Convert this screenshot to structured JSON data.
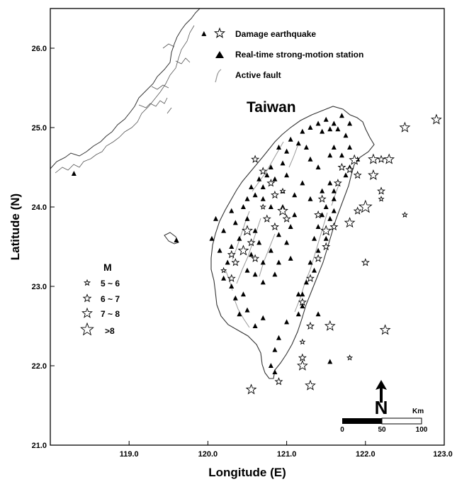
{
  "map": {
    "type": "map",
    "region_label": "Taiwan",
    "x_axis_title": "Longitude (E)",
    "y_axis_title": "Latitude (N)",
    "lon_range": [
      118.0,
      123.0
    ],
    "lat_range": [
      21.0,
      26.5
    ],
    "lon_ticks": [
      119.0,
      120.0,
      121.0,
      122.0,
      123.0
    ],
    "lat_ticks": [
      21.0,
      22.0,
      23.0,
      24.0,
      25.0,
      26.0
    ],
    "lon_tick_labels": [
      "119.0",
      "120.0",
      "121.0",
      "122.0",
      "123.0"
    ],
    "lat_tick_labels": [
      "21.0",
      "22.0",
      "23.0",
      "24.0",
      "25.0",
      "26.0"
    ]
  },
  "legend": {
    "items": [
      {
        "label": "Damage earthquake",
        "icon": "star-icon"
      },
      {
        "label": "Real-time strong-motion station",
        "icon": "triangle-icon"
      },
      {
        "label": "Active fault",
        "icon": "fault-line-icon"
      }
    ]
  },
  "magnitude_legend": {
    "title": "M",
    "classes": [
      "5 ~ 6",
      "6 ~ 7",
      "7 ~ 8",
      ">8"
    ]
  },
  "scale_bar": {
    "unit": "Km",
    "labels": [
      "0",
      "50",
      "100"
    ]
  },
  "north_arrow": {
    "label": "N"
  },
  "earthquakes": [
    {
      "lon": 121.86,
      "lat": 24.59,
      "m": 7
    },
    {
      "lon": 122.1,
      "lat": 24.6,
      "m": 7
    },
    {
      "lon": 122.3,
      "lat": 24.6,
      "m": 7
    },
    {
      "lon": 122.2,
      "lat": 24.6,
      "m": 6
    },
    {
      "lon": 122.5,
      "lat": 25.0,
      "m": 7
    },
    {
      "lon": 122.9,
      "lat": 25.1,
      "m": 7
    },
    {
      "lon": 121.8,
      "lat": 24.47,
      "m": 6
    },
    {
      "lon": 121.7,
      "lat": 24.5,
      "m": 6
    },
    {
      "lon": 121.9,
      "lat": 24.4,
      "m": 6
    },
    {
      "lon": 122.1,
      "lat": 24.4,
      "m": 7
    },
    {
      "lon": 122.2,
      "lat": 24.2,
      "m": 6
    },
    {
      "lon": 122.2,
      "lat": 24.1,
      "m": 5
    },
    {
      "lon": 122.5,
      "lat": 23.9,
      "m": 5
    },
    {
      "lon": 122.0,
      "lat": 24.0,
      "m": 8
    },
    {
      "lon": 121.8,
      "lat": 23.8,
      "m": 7
    },
    {
      "lon": 121.9,
      "lat": 23.95,
      "m": 6
    },
    {
      "lon": 121.6,
      "lat": 23.75,
      "m": 6
    },
    {
      "lon": 121.5,
      "lat": 23.7,
      "m": 7
    },
    {
      "lon": 121.4,
      "lat": 23.9,
      "m": 6
    },
    {
      "lon": 121.45,
      "lat": 24.1,
      "m": 6
    },
    {
      "lon": 121.5,
      "lat": 23.5,
      "m": 6
    },
    {
      "lon": 121.4,
      "lat": 23.35,
      "m": 6
    },
    {
      "lon": 121.3,
      "lat": 23.1,
      "m": 6
    },
    {
      "lon": 122.0,
      "lat": 23.3,
      "m": 6
    },
    {
      "lon": 121.2,
      "lat": 22.8,
      "m": 6
    },
    {
      "lon": 121.55,
      "lat": 22.5,
      "m": 7
    },
    {
      "lon": 121.3,
      "lat": 22.5,
      "m": 6
    },
    {
      "lon": 122.25,
      "lat": 22.45,
      "m": 7
    },
    {
      "lon": 121.2,
      "lat": 22.1,
      "m": 6
    },
    {
      "lon": 121.2,
      "lat": 22.0,
      "m": 7
    },
    {
      "lon": 121.8,
      "lat": 22.1,
      "m": 5
    },
    {
      "lon": 121.3,
      "lat": 21.75,
      "m": 7
    },
    {
      "lon": 120.9,
      "lat": 21.8,
      "m": 6
    },
    {
      "lon": 120.55,
      "lat": 21.7,
      "m": 7
    },
    {
      "lon": 121.2,
      "lat": 22.3,
      "m": 5
    },
    {
      "lon": 120.5,
      "lat": 23.7,
      "m": 7
    },
    {
      "lon": 120.45,
      "lat": 23.45,
      "m": 7
    },
    {
      "lon": 120.35,
      "lat": 23.3,
      "m": 6
    },
    {
      "lon": 120.55,
      "lat": 23.55,
      "m": 6
    },
    {
      "lon": 120.6,
      "lat": 23.35,
      "m": 6
    },
    {
      "lon": 120.3,
      "lat": 23.4,
      "m": 6
    },
    {
      "lon": 120.2,
      "lat": 23.2,
      "m": 5
    },
    {
      "lon": 120.3,
      "lat": 23.1,
      "m": 6
    },
    {
      "lon": 120.75,
      "lat": 23.85,
      "m": 6
    },
    {
      "lon": 120.85,
      "lat": 23.75,
      "m": 6
    },
    {
      "lon": 121.0,
      "lat": 23.85,
      "m": 6
    },
    {
      "lon": 120.95,
      "lat": 23.95,
      "m": 7
    },
    {
      "lon": 120.85,
      "lat": 24.15,
      "m": 6
    },
    {
      "lon": 120.8,
      "lat": 24.3,
      "m": 6
    },
    {
      "lon": 120.7,
      "lat": 24.0,
      "m": 5
    },
    {
      "lon": 120.95,
      "lat": 24.2,
      "m": 5
    },
    {
      "lon": 120.7,
      "lat": 24.45,
      "m": 6
    },
    {
      "lon": 120.6,
      "lat": 24.6,
      "m": 6
    },
    {
      "lon": 121.65,
      "lat": 24.3,
      "m": 6
    }
  ],
  "stations": [
    {
      "lon": 121.5,
      "lat": 25.1
    },
    {
      "lon": 121.6,
      "lat": 25.05
    },
    {
      "lon": 121.7,
      "lat": 25.15
    },
    {
      "lon": 121.55,
      "lat": 24.98
    },
    {
      "lon": 121.4,
      "lat": 25.05
    },
    {
      "lon": 121.45,
      "lat": 24.95
    },
    {
      "lon": 121.3,
      "lat": 25.0
    },
    {
      "lon": 121.65,
      "lat": 24.98
    },
    {
      "lon": 121.8,
      "lat": 25.05
    },
    {
      "lon": 121.75,
      "lat": 24.9
    },
    {
      "lon": 121.2,
      "lat": 24.95
    },
    {
      "lon": 121.05,
      "lat": 24.85
    },
    {
      "lon": 121.15,
      "lat": 24.8
    },
    {
      "lon": 121.6,
      "lat": 24.75
    },
    {
      "lon": 121.8,
      "lat": 24.75
    },
    {
      "lon": 121.7,
      "lat": 24.65
    },
    {
      "lon": 121.9,
      "lat": 24.6
    },
    {
      "lon": 121.55,
      "lat": 24.65
    },
    {
      "lon": 121.8,
      "lat": 24.5
    },
    {
      "lon": 121.75,
      "lat": 24.4
    },
    {
      "lon": 121.3,
      "lat": 24.6
    },
    {
      "lon": 121.0,
      "lat": 24.7
    },
    {
      "lon": 120.9,
      "lat": 24.75
    },
    {
      "lon": 120.95,
      "lat": 24.55
    },
    {
      "lon": 120.8,
      "lat": 24.5
    },
    {
      "lon": 120.75,
      "lat": 24.4
    },
    {
      "lon": 120.65,
      "lat": 24.35
    },
    {
      "lon": 120.85,
      "lat": 24.35
    },
    {
      "lon": 120.7,
      "lat": 24.25
    },
    {
      "lon": 120.55,
      "lat": 24.25
    },
    {
      "lon": 120.6,
      "lat": 24.15
    },
    {
      "lon": 120.5,
      "lat": 24.1
    },
    {
      "lon": 120.7,
      "lat": 24.1
    },
    {
      "lon": 120.8,
      "lat": 24.0
    },
    {
      "lon": 120.95,
      "lat": 24.2
    },
    {
      "lon": 121.1,
      "lat": 24.15
    },
    {
      "lon": 121.2,
      "lat": 24.3
    },
    {
      "lon": 121.3,
      "lat": 24.1
    },
    {
      "lon": 121.45,
      "lat": 24.2
    },
    {
      "lon": 121.55,
      "lat": 24.3
    },
    {
      "lon": 121.6,
      "lat": 24.2
    },
    {
      "lon": 121.6,
      "lat": 24.1
    },
    {
      "lon": 121.5,
      "lat": 24.0
    },
    {
      "lon": 121.45,
      "lat": 23.9
    },
    {
      "lon": 121.55,
      "lat": 23.85
    },
    {
      "lon": 121.6,
      "lat": 23.95
    },
    {
      "lon": 121.4,
      "lat": 23.75
    },
    {
      "lon": 121.35,
      "lat": 23.6
    },
    {
      "lon": 121.4,
      "lat": 23.45
    },
    {
      "lon": 121.3,
      "lat": 23.3
    },
    {
      "lon": 121.35,
      "lat": 23.2
    },
    {
      "lon": 121.25,
      "lat": 23.05
    },
    {
      "lon": 121.2,
      "lat": 22.9
    },
    {
      "lon": 121.2,
      "lat": 22.75
    },
    {
      "lon": 121.15,
      "lat": 22.65
    },
    {
      "lon": 121.0,
      "lat": 22.55
    },
    {
      "lon": 120.9,
      "lat": 22.35
    },
    {
      "lon": 120.85,
      "lat": 22.2
    },
    {
      "lon": 120.8,
      "lat": 22.0
    },
    {
      "lon": 120.85,
      "lat": 21.92
    },
    {
      "lon": 120.7,
      "lat": 22.6
    },
    {
      "lon": 120.6,
      "lat": 22.5
    },
    {
      "lon": 120.5,
      "lat": 22.7
    },
    {
      "lon": 120.4,
      "lat": 22.65
    },
    {
      "lon": 120.35,
      "lat": 22.85
    },
    {
      "lon": 120.45,
      "lat": 22.9
    },
    {
      "lon": 120.3,
      "lat": 23.0
    },
    {
      "lon": 120.2,
      "lat": 23.1
    },
    {
      "lon": 120.25,
      "lat": 23.3
    },
    {
      "lon": 120.15,
      "lat": 23.45
    },
    {
      "lon": 120.3,
      "lat": 23.5
    },
    {
      "lon": 120.4,
      "lat": 23.6
    },
    {
      "lon": 120.2,
      "lat": 23.7
    },
    {
      "lon": 120.35,
      "lat": 23.8
    },
    {
      "lon": 120.3,
      "lat": 23.95
    },
    {
      "lon": 120.45,
      "lat": 24.0
    },
    {
      "lon": 120.5,
      "lat": 23.85
    },
    {
      "lon": 120.6,
      "lat": 23.7
    },
    {
      "lon": 120.65,
      "lat": 23.55
    },
    {
      "lon": 120.55,
      "lat": 23.4
    },
    {
      "lon": 120.7,
      "lat": 23.3
    },
    {
      "lon": 120.6,
      "lat": 23.15
    },
    {
      "lon": 120.5,
      "lat": 23.2
    },
    {
      "lon": 120.7,
      "lat": 23.05
    },
    {
      "lon": 120.85,
      "lat": 23.15
    },
    {
      "lon": 120.9,
      "lat": 23.3
    },
    {
      "lon": 120.8,
      "lat": 23.45
    },
    {
      "lon": 121.0,
      "lat": 23.55
    },
    {
      "lon": 120.9,
      "lat": 23.65
    },
    {
      "lon": 121.05,
      "lat": 23.75
    },
    {
      "lon": 121.1,
      "lat": 23.9
    },
    {
      "lon": 120.95,
      "lat": 24.0
    },
    {
      "lon": 121.0,
      "lat": 24.4
    },
    {
      "lon": 121.4,
      "lat": 24.5
    },
    {
      "lon": 121.25,
      "lat": 24.75
    },
    {
      "lon": 120.05,
      "lat": 23.6
    },
    {
      "lon": 120.1,
      "lat": 23.85
    },
    {
      "lon": 121.4,
      "lat": 22.65
    },
    {
      "lon": 121.55,
      "lat": 22.05
    },
    {
      "lon": 119.95,
      "lat": 26.18
    },
    {
      "lon": 118.3,
      "lat": 24.42
    },
    {
      "lon": 119.6,
      "lat": 23.58
    },
    {
      "lon": 121.15,
      "lat": 22.9
    },
    {
      "lon": 121.05,
      "lat": 23.35
    },
    {
      "lon": 121.5,
      "lat": 23.6
    }
  ]
}
